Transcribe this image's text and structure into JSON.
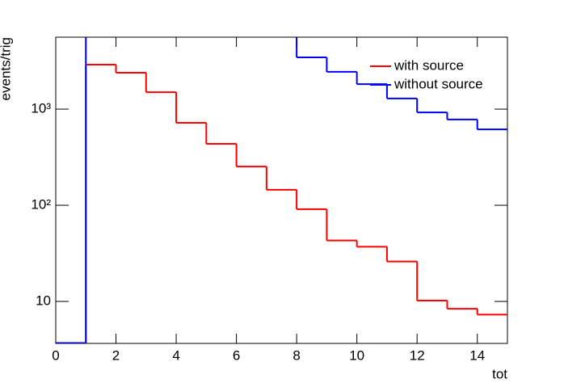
{
  "chart_data": {
    "type": "histogram",
    "xlabel": "tot",
    "ylabel": "events/trig",
    "bins": [
      0,
      1,
      2,
      3,
      4,
      5,
      6,
      7,
      8,
      9,
      10,
      11,
      12,
      13,
      14,
      15
    ],
    "series": [
      {
        "name": "with source",
        "color": "#ff0000",
        "values": [
          null,
          2900,
          2390,
          1500,
          720,
          435,
          253,
          145,
          91,
          43,
          37,
          26,
          10.2,
          8.4,
          7.3
        ]
      },
      {
        "name": "without source",
        "color": "#0000ff",
        "values": [
          3.7,
          7000,
          7000,
          7000,
          7000,
          7000,
          7000,
          7000,
          3450,
          2440,
          1820,
          1290,
          925,
          780,
          615
        ]
      }
    ],
    "xlim": [
      0,
      15
    ],
    "xticks": [
      0,
      2,
      4,
      6,
      8,
      10,
      12,
      14
    ],
    "ylim": [
      3.66,
      5600
    ],
    "log_y": true,
    "yticks": [
      10,
      {
        "value": 100,
        "label": "10²"
      },
      {
        "value": 1000,
        "label": "10³"
      }
    ],
    "legend": "upper right"
  }
}
